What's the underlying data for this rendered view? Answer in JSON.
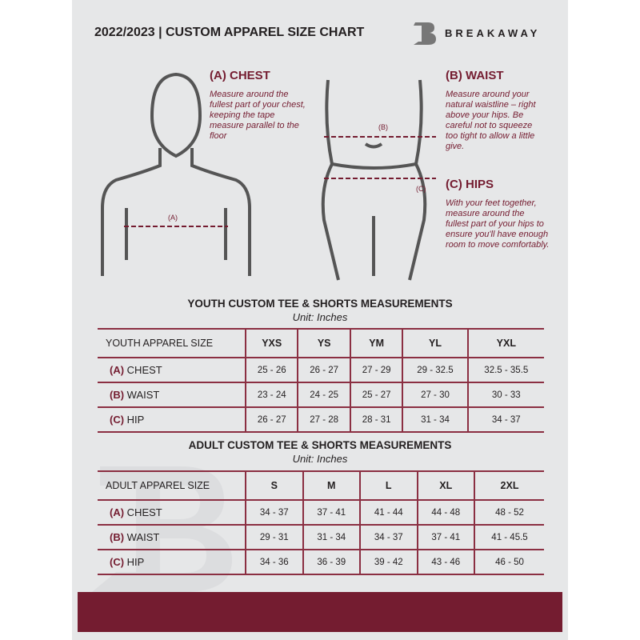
{
  "header": {
    "title": "2022/2023  |  CUSTOM APPAREL SIZE CHART",
    "brand": "BREAKAWAY",
    "logo_letter": "B"
  },
  "chest": {
    "heading": "(A) CHEST",
    "marker": "(A)",
    "description": "Measure around the fullest part of your chest, keeping the tape measure parallel to the floor"
  },
  "waist": {
    "heading": "(B) WAIST",
    "marker": "(B)",
    "description": "Measure around your natural waistline – right above your hips. Be careful not to squeeze too tight to allow a little give."
  },
  "hips": {
    "heading": "(C) HIPS",
    "marker": "(C)",
    "description": "With your feet together, measure around the fullest part of your hips to ensure you'll have enough room to move comfortably."
  },
  "youth": {
    "title": "YOUTH CUSTOM TEE & SHORTS MEASUREMENTS",
    "unit": "Unit: Inches",
    "size_header": "YOUTH APPAREL SIZE",
    "sizes": [
      "YXS",
      "YS",
      "YM",
      "YL",
      "YXL"
    ],
    "rows": [
      {
        "code": "(A)",
        "name": "CHEST",
        "values": [
          "25 - 26",
          "26 - 27",
          "27 - 29",
          "29 - 32.5",
          "32.5 - 35.5"
        ]
      },
      {
        "code": "(B)",
        "name": "WAIST",
        "values": [
          "23 - 24",
          "24 - 25",
          "25 - 27",
          "27 - 30",
          "30 - 33"
        ]
      },
      {
        "code": "(C)",
        "name": "HIP",
        "values": [
          "26 - 27",
          "27 - 28",
          "28 - 31",
          "31 - 34",
          "34 - 37"
        ]
      }
    ]
  },
  "adult": {
    "title": "ADULT CUSTOM TEE & SHORTS MEASUREMENTS",
    "unit": "Unit: Inches",
    "size_header": "ADULT APPAREL SIZE",
    "sizes": [
      "S",
      "M",
      "L",
      "XL",
      "2XL"
    ],
    "rows": [
      {
        "code": "(A)",
        "name": "CHEST",
        "values": [
          "34 - 37",
          "37 - 41",
          "41 - 44",
          "44 - 48",
          "48 - 52"
        ]
      },
      {
        "code": "(B)",
        "name": "WAIST",
        "values": [
          "29 - 31",
          "31 - 34",
          "34 - 37",
          "37 - 41",
          "41 - 45.5"
        ]
      },
      {
        "code": "(C)",
        "name": "HIP",
        "values": [
          "34 - 36",
          "36 - 39",
          "39 - 42",
          "43 - 46",
          "46 - 50"
        ]
      }
    ]
  },
  "colors": {
    "accent": "#741c30",
    "background": "#e6e7e8",
    "text": "#231f20"
  }
}
